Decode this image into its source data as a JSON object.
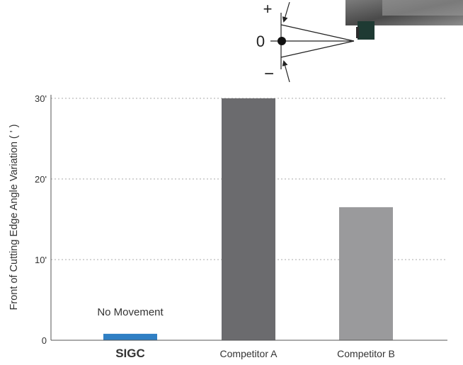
{
  "chart_data": {
    "type": "bar",
    "ylabel": "Front of Cutting Edge Angle Variation ( ' )",
    "ylim": [
      0,
      30
    ],
    "grid": true,
    "y_ticks": [
      {
        "value": 0,
        "label": "0"
      },
      {
        "value": 10,
        "label": "10'"
      },
      {
        "value": 20,
        "label": "20'"
      },
      {
        "value": 30,
        "label": "30'"
      }
    ],
    "categories": [
      "SIGC",
      "Competitor A",
      "Competitor B"
    ],
    "values": [
      0.8,
      30,
      16.5
    ],
    "bar_colors": [
      "#2f7fc4",
      "#6b6b6e",
      "#9a9a9c"
    ],
    "annotations": [
      {
        "category": "SIGC",
        "text": "No Movement"
      }
    ]
  },
  "diagram": {
    "plus_label": "+",
    "zero_label": "0",
    "minus_label": "−"
  },
  "colors": {
    "axis": "#555555",
    "grid": "#aaaaaa",
    "text": "#333333",
    "tool_dark": "#1e3a33",
    "photo_gray": "#5a5a5a"
  }
}
